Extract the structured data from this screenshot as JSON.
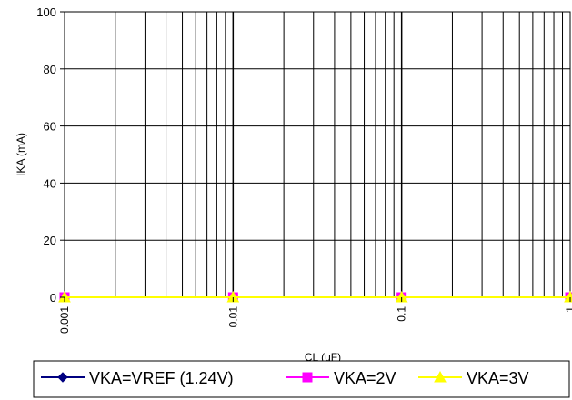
{
  "chart_data": {
    "type": "line",
    "title": "",
    "xlabel": "CL (uF)",
    "ylabel": "IKA (mA)",
    "x_scale": "log",
    "xlim": [
      0.001,
      1
    ],
    "ylim": [
      0,
      100
    ],
    "y_ticks": [
      0,
      20,
      40,
      60,
      80,
      100
    ],
    "x_tick_labels": [
      "0.001",
      "0.01",
      "0.1",
      "1"
    ],
    "x_tick_values": [
      0.001,
      0.01,
      0.1,
      1
    ],
    "grid": true,
    "legend_position": "bottom",
    "x": [
      0.001,
      0.01,
      0.1,
      1
    ],
    "series": [
      {
        "name": "VKA=VREF (1.24V)",
        "values": [
          0,
          0,
          0,
          0
        ],
        "color": "#000080",
        "marker": "diamond"
      },
      {
        "name": "VKA=2V",
        "values": [
          0,
          0,
          0,
          0
        ],
        "color": "#ff00ff",
        "marker": "square"
      },
      {
        "name": "VKA=3V",
        "values": [
          0,
          0,
          0,
          0
        ],
        "color": "#ffff00",
        "marker": "triangle"
      }
    ]
  }
}
